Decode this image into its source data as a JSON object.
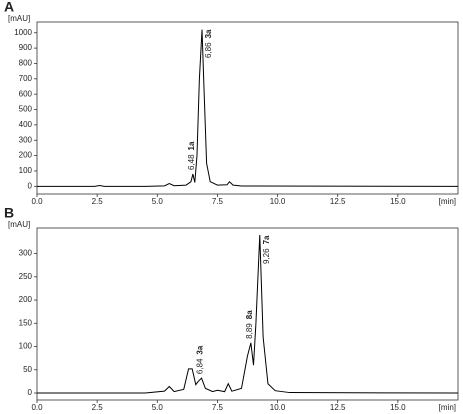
{
  "chart_data": [
    {
      "type": "line",
      "panel": "A",
      "y_label": "[mAU]",
      "x_label": "[min]",
      "color": "#000000",
      "xlim": [
        0,
        17.5
      ],
      "ylim": [
        -50,
        1070
      ],
      "xticks": [
        {
          "value": 0,
          "label": "0.0"
        },
        2.5,
        {
          "value": 5,
          "label": "5.0"
        },
        7.5,
        {
          "value": 10,
          "label": "10.0"
        },
        12.5,
        {
          "value": 15,
          "label": "15.0"
        }
      ],
      "yticks": [
        0,
        100,
        200,
        300,
        400,
        500,
        600,
        700,
        800,
        900,
        1000
      ],
      "x": [
        0,
        2.4,
        2.6,
        2.8,
        4.5,
        5.3,
        5.5,
        5.7,
        6.2,
        6.4,
        6.48,
        6.56,
        6.65,
        6.75,
        6.86,
        6.95,
        7.05,
        7.2,
        7.5,
        7.9,
        8.0,
        8.15,
        8.5,
        17.5
      ],
      "values": [
        0,
        0,
        5,
        0,
        0,
        3,
        18,
        4,
        8,
        30,
        80,
        25,
        200,
        700,
        1020,
        600,
        150,
        30,
        8,
        10,
        30,
        8,
        2,
        0
      ],
      "annotations": [
        {
          "x": 6.48,
          "label": "6,48",
          "compound": "1a"
        },
        {
          "x": 6.86,
          "label": "6,86",
          "compound": "3a"
        }
      ]
    },
    {
      "type": "line",
      "panel": "B",
      "y_label": "[mAU]",
      "x_label": "[min]",
      "color": "#000000",
      "xlim": [
        0,
        17.5
      ],
      "ylim": [
        -15,
        355
      ],
      "xticks": [
        {
          "value": 0,
          "label": "0.0"
        },
        2.5,
        {
          "value": 5,
          "label": "5.0"
        },
        7.5,
        {
          "value": 10,
          "label": "10.0"
        },
        12.5,
        {
          "value": 15,
          "label": "15.0"
        }
      ],
      "yticks": [
        0,
        50,
        100,
        150,
        200,
        250,
        300
      ],
      "x": [
        0,
        4.5,
        5.3,
        5.5,
        5.7,
        6.1,
        6.3,
        6.45,
        6.6,
        6.7,
        6.84,
        7.0,
        7.3,
        7.5,
        7.8,
        7.95,
        8.1,
        8.5,
        8.75,
        8.89,
        9.0,
        9.1,
        9.26,
        9.4,
        9.6,
        9.9,
        10.5,
        17.5
      ],
      "values": [
        0,
        0,
        4,
        14,
        3,
        8,
        52,
        52,
        18,
        25,
        32,
        10,
        3,
        6,
        3,
        20,
        4,
        10,
        80,
        108,
        60,
        150,
        340,
        120,
        20,
        5,
        1,
        0
      ],
      "annotations": [
        {
          "x": 6.84,
          "label": "6,84",
          "compound": "3a"
        },
        {
          "x": 8.89,
          "label": "8,89",
          "compound": "8a"
        },
        {
          "x": 9.26,
          "label": "9,26",
          "compound": "7a"
        }
      ]
    }
  ]
}
